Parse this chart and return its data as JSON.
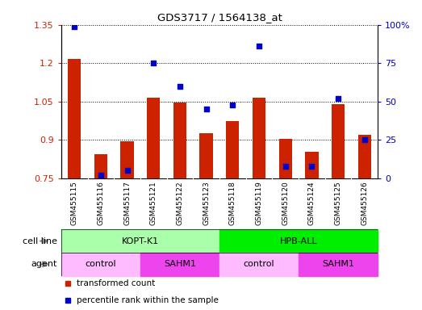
{
  "title": "GDS3717 / 1564138_at",
  "samples": [
    "GSM455115",
    "GSM455116",
    "GSM455117",
    "GSM455121",
    "GSM455122",
    "GSM455123",
    "GSM455118",
    "GSM455119",
    "GSM455120",
    "GSM455124",
    "GSM455125",
    "GSM455126"
  ],
  "bar_values": [
    1.215,
    0.845,
    0.895,
    1.065,
    1.045,
    0.925,
    0.975,
    1.065,
    0.905,
    0.855,
    1.04,
    0.92
  ],
  "bar_base": 0.75,
  "blue_values": [
    99,
    2,
    5,
    75,
    60,
    45,
    48,
    86,
    8,
    8,
    52,
    25
  ],
  "bar_color": "#cc2200",
  "blue_color": "#0000cc",
  "ylim_left": [
    0.75,
    1.35
  ],
  "ylim_right": [
    0,
    100
  ],
  "yticks_left": [
    0.75,
    0.9,
    1.05,
    1.2,
    1.35
  ],
  "yticks_right": [
    0,
    25,
    50,
    75,
    100
  ],
  "ytick_labels_left": [
    "0.75",
    "0.9",
    "1.05",
    "1.2",
    "1.35"
  ],
  "ytick_labels_right": [
    "0",
    "25",
    "50",
    "75",
    "100%"
  ],
  "cell_line_groups": [
    {
      "label": "KOPT-K1",
      "start": 0,
      "end": 6,
      "color": "#aaffaa"
    },
    {
      "label": "HPB-ALL",
      "start": 6,
      "end": 12,
      "color": "#00ee00"
    }
  ],
  "agent_groups": [
    {
      "label": "control",
      "start": 0,
      "end": 3,
      "color": "#ffbbff"
    },
    {
      "label": "SAHM1",
      "start": 3,
      "end": 6,
      "color": "#ee44ee"
    },
    {
      "label": "control",
      "start": 6,
      "end": 9,
      "color": "#ffbbff"
    },
    {
      "label": "SAHM1",
      "start": 9,
      "end": 12,
      "color": "#ee44ee"
    }
  ],
  "legend_items": [
    {
      "label": "transformed count",
      "color": "#cc2200"
    },
    {
      "label": "percentile rank within the sample",
      "color": "#0000cc"
    }
  ],
  "cell_line_label": "cell line",
  "agent_label": "agent",
  "tick_label_color_left": "#cc2200",
  "tick_label_color_right": "#0000cc",
  "bar_width": 0.5,
  "blue_marker_size": 5,
  "xtick_bg_color": "#cccccc",
  "plot_bg_color": "#ffffff"
}
